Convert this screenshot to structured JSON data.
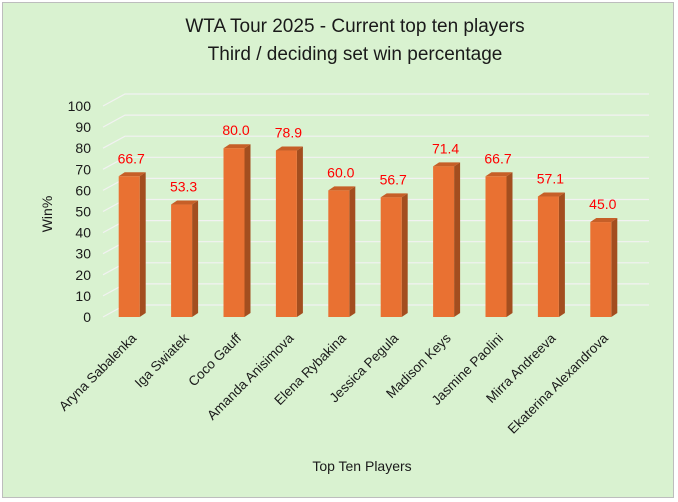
{
  "chart_data": {
    "type": "bar",
    "title_lines": [
      "WTA Tour 2025 - Current top ten players",
      "Third / deciding set win percentage"
    ],
    "xlabel": "Top Ten Players",
    "ylabel": "Win%",
    "ylim": [
      0,
      100
    ],
    "yticks": [
      "0",
      "10",
      "20",
      "30",
      "40",
      "50",
      "60",
      "70",
      "80",
      "90",
      "100"
    ],
    "categories": [
      "Aryna Sabalenka",
      "Iga Swiatek",
      "Coco Gauff",
      "Amanda Anisimova",
      "Elena Rybakina",
      "Jessica Pegula",
      "Madison Keys",
      "Jasmine Paolini",
      "Mirra Andreeva",
      "Ekaterina Alexandrova"
    ],
    "values": [
      66.7,
      53.3,
      80.0,
      78.9,
      60.0,
      56.7,
      71.4,
      66.7,
      57.1,
      45.0
    ],
    "data_labels": [
      "66.7",
      "53.3",
      "80.0",
      "78.9",
      "60.0",
      "56.7",
      "71.4",
      "66.7",
      "57.1",
      "45.0"
    ],
    "grid": true,
    "legend": "none",
    "colors": {
      "background": "#d9f2d0",
      "bar_front": "#e97132",
      "bar_side": "#a34e1f",
      "bar_top": "#c65f28",
      "data_label": "#ff0000",
      "gridline": "#f2f2f2"
    }
  }
}
